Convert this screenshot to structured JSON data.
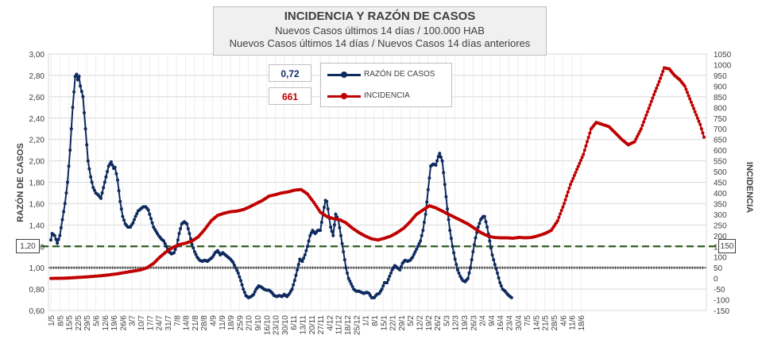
{
  "chart_data": {
    "type": "line",
    "title": "INCIDENCIA Y RAZÓN DE CASOS",
    "subtitle_1": "Nuevos Casos últimos 14 días / 100.000  HAB",
    "subtitle_2": "Nuevos Casos últimos 14 días / Nuevos Casos 14 días anteriores",
    "ylabel_left": "RAZÓN DE CASOS",
    "ylabel_right": "INCIDENCIA",
    "ylim_left": [
      0.6,
      3.0
    ],
    "ylim_right": [
      -150,
      1050
    ],
    "yticks_left": [
      "3,00",
      "2,80",
      "2,60",
      "2,40",
      "2,20",
      "2,00",
      "1,80",
      "1,60",
      "1,40",
      "1,20",
      "1,00",
      "0,80",
      "0,60"
    ],
    "yticks_right": [
      "1050",
      "1000",
      "950",
      "900",
      "850",
      "800",
      "750",
      "700",
      "650",
      "600",
      "550",
      "500",
      "450",
      "400",
      "350",
      "300",
      "250",
      "200",
      "150",
      "100",
      "50",
      "0",
      "-50",
      "-100",
      "-150"
    ],
    "x_tick_labels": [
      "1/5",
      "8/5",
      "15/5",
      "22/5",
      "29/5",
      "5/6",
      "12/6",
      "19/6",
      "26/6",
      "3/7",
      "10/7",
      "17/7",
      "24/7",
      "31/7",
      "7/8",
      "14/8",
      "21/8",
      "28/8",
      "4/9",
      "11/9",
      "18/9",
      "25/9",
      "2/10",
      "9/10",
      "16/10",
      "23/10",
      "30/10",
      "6/11",
      "13/11",
      "20/11",
      "27/11",
      "4/12",
      "11/12",
      "18/12",
      "25/12",
      "1/1",
      "8/1",
      "15/1",
      "22/1",
      "29/1",
      "5/2",
      "12/2",
      "19/2",
      "26/2",
      "5/3",
      "12/3",
      "19/3",
      "26/3",
      "2/4",
      "9/4",
      "16/4",
      "23/4",
      "30/4",
      "7/5",
      "14/5",
      "21/5",
      "28/5",
      "4/6",
      "11/6",
      "18/6"
    ],
    "threshold_ratio": 1.2,
    "threshold_ratio_label": "1,20",
    "threshold_incidence": 150,
    "threshold_incidence_label": "150",
    "baseline_ratio": 1.0,
    "series": [
      {
        "name": "RAZÓN DE CASOS",
        "color": "#0e2a5e",
        "axis": "left",
        "keypoints": [
          [
            0,
            1.26
          ],
          [
            1,
            1.32
          ],
          [
            3,
            1.3
          ],
          [
            5,
            1.23
          ],
          [
            7,
            1.3
          ],
          [
            9,
            1.45
          ],
          [
            11,
            1.6
          ],
          [
            13,
            1.8
          ],
          [
            15,
            2.1
          ],
          [
            17,
            2.5
          ],
          [
            19,
            2.79
          ],
          [
            20,
            2.81
          ],
          [
            21,
            2.76
          ],
          [
            22,
            2.79
          ],
          [
            23,
            2.7
          ],
          [
            25,
            2.6
          ],
          [
            27,
            2.3
          ],
          [
            29,
            2.0
          ],
          [
            31,
            1.85
          ],
          [
            33,
            1.75
          ],
          [
            35,
            1.7
          ],
          [
            37,
            1.68
          ],
          [
            39,
            1.65
          ],
          [
            41,
            1.75
          ],
          [
            43,
            1.85
          ],
          [
            45,
            1.95
          ],
          [
            47,
            1.99
          ],
          [
            49,
            1.93
          ],
          [
            50,
            1.94
          ],
          [
            52,
            1.82
          ],
          [
            54,
            1.62
          ],
          [
            56,
            1.48
          ],
          [
            58,
            1.41
          ],
          [
            60,
            1.38
          ],
          [
            62,
            1.38
          ],
          [
            64,
            1.42
          ],
          [
            66,
            1.48
          ],
          [
            68,
            1.53
          ],
          [
            70,
            1.55
          ],
          [
            72,
            1.57
          ],
          [
            74,
            1.57
          ],
          [
            76,
            1.54
          ],
          [
            78,
            1.46
          ],
          [
            80,
            1.38
          ],
          [
            82,
            1.34
          ],
          [
            84,
            1.3
          ],
          [
            86,
            1.27
          ],
          [
            88,
            1.25
          ],
          [
            90,
            1.2
          ],
          [
            92,
            1.15
          ],
          [
            94,
            1.13
          ],
          [
            96,
            1.14
          ],
          [
            98,
            1.2
          ],
          [
            100,
            1.32
          ],
          [
            102,
            1.41
          ],
          [
            104,
            1.43
          ],
          [
            106,
            1.41
          ],
          [
            108,
            1.32
          ],
          [
            110,
            1.22
          ],
          [
            112,
            1.15
          ],
          [
            114,
            1.1
          ],
          [
            116,
            1.07
          ],
          [
            118,
            1.06
          ],
          [
            120,
            1.07
          ],
          [
            122,
            1.06
          ],
          [
            124,
            1.08
          ],
          [
            126,
            1.1
          ],
          [
            128,
            1.14
          ],
          [
            130,
            1.16
          ],
          [
            132,
            1.12
          ],
          [
            134,
            1.14
          ],
          [
            136,
            1.12
          ],
          [
            138,
            1.1
          ],
          [
            140,
            1.08
          ],
          [
            142,
            1.05
          ],
          [
            144,
            1.0
          ],
          [
            146,
            0.95
          ],
          [
            148,
            0.88
          ],
          [
            150,
            0.8
          ],
          [
            152,
            0.74
          ],
          [
            154,
            0.72
          ],
          [
            156,
            0.73
          ],
          [
            158,
            0.75
          ],
          [
            160,
            0.8
          ],
          [
            162,
            0.83
          ],
          [
            164,
            0.82
          ],
          [
            166,
            0.8
          ],
          [
            168,
            0.79
          ],
          [
            170,
            0.79
          ],
          [
            172,
            0.77
          ],
          [
            174,
            0.74
          ],
          [
            176,
            0.73
          ],
          [
            178,
            0.74
          ],
          [
            180,
            0.73
          ],
          [
            182,
            0.75
          ],
          [
            184,
            0.73
          ],
          [
            186,
            0.76
          ],
          [
            188,
            0.8
          ],
          [
            190,
            0.88
          ],
          [
            192,
            0.98
          ],
          [
            194,
            1.08
          ],
          [
            196,
            1.06
          ],
          [
            198,
            1.12
          ],
          [
            200,
            1.2
          ],
          [
            202,
            1.3
          ],
          [
            204,
            1.35
          ],
          [
            206,
            1.32
          ],
          [
            208,
            1.35
          ],
          [
            210,
            1.35
          ],
          [
            212,
            1.5
          ],
          [
            214,
            1.63
          ],
          [
            215,
            1.62
          ],
          [
            216,
            1.55
          ],
          [
            218,
            1.38
          ],
          [
            220,
            1.3
          ],
          [
            222,
            1.5
          ],
          [
            224,
            1.45
          ],
          [
            226,
            1.3
          ],
          [
            228,
            1.15
          ],
          [
            230,
            1.0
          ],
          [
            232,
            0.9
          ],
          [
            234,
            0.85
          ],
          [
            236,
            0.8
          ],
          [
            238,
            0.78
          ],
          [
            240,
            0.78
          ],
          [
            242,
            0.77
          ],
          [
            244,
            0.76
          ],
          [
            246,
            0.77
          ],
          [
            248,
            0.76
          ],
          [
            250,
            0.72
          ],
          [
            252,
            0.72
          ],
          [
            254,
            0.75
          ],
          [
            256,
            0.76
          ],
          [
            258,
            0.8
          ],
          [
            260,
            0.86
          ],
          [
            262,
            0.86
          ],
          [
            264,
            0.92
          ],
          [
            266,
            0.98
          ],
          [
            268,
            1.02
          ],
          [
            270,
            1.0
          ],
          [
            272,
            0.98
          ],
          [
            274,
            1.04
          ],
          [
            276,
            1.07
          ],
          [
            278,
            1.06
          ],
          [
            280,
            1.07
          ],
          [
            282,
            1.1
          ],
          [
            284,
            1.15
          ],
          [
            286,
            1.2
          ],
          [
            288,
            1.25
          ],
          [
            290,
            1.35
          ],
          [
            292,
            1.5
          ],
          [
            294,
            1.73
          ],
          [
            296,
            1.95
          ],
          [
            298,
            1.97
          ],
          [
            300,
            1.96
          ],
          [
            302,
            2.04
          ],
          [
            303,
            2.07
          ],
          [
            305,
            2.0
          ],
          [
            307,
            1.78
          ],
          [
            309,
            1.55
          ],
          [
            311,
            1.35
          ],
          [
            313,
            1.2
          ],
          [
            315,
            1.08
          ],
          [
            317,
            0.98
          ],
          [
            319,
            0.92
          ],
          [
            321,
            0.88
          ],
          [
            323,
            0.87
          ],
          [
            325,
            0.9
          ],
          [
            327,
            1.0
          ],
          [
            329,
            1.15
          ],
          [
            331,
            1.28
          ],
          [
            333,
            1.38
          ],
          [
            335,
            1.45
          ],
          [
            337,
            1.48
          ],
          [
            338,
            1.48
          ],
          [
            340,
            1.38
          ],
          [
            342,
            1.25
          ],
          [
            344,
            1.12
          ],
          [
            346,
            1.03
          ],
          [
            348,
            0.95
          ],
          [
            350,
            0.86
          ],
          [
            352,
            0.8
          ],
          [
            354,
            0.78
          ],
          [
            356,
            0.75
          ],
          [
            358,
            0.73
          ],
          [
            359,
            0.72
          ]
        ]
      },
      {
        "name": "INCIDENCIA",
        "color": "#c00000",
        "axis": "right",
        "keypoints": [
          [
            0,
            0
          ],
          [
            10,
            1
          ],
          [
            20,
            4
          ],
          [
            30,
            8
          ],
          [
            40,
            13
          ],
          [
            50,
            20
          ],
          [
            60,
            30
          ],
          [
            70,
            40
          ],
          [
            75,
            50
          ],
          [
            80,
            70
          ],
          [
            85,
            100
          ],
          [
            90,
            125
          ],
          [
            95,
            145
          ],
          [
            100,
            158
          ],
          [
            105,
            165
          ],
          [
            110,
            175
          ],
          [
            115,
            195
          ],
          [
            120,
            230
          ],
          [
            125,
            270
          ],
          [
            130,
            295
          ],
          [
            135,
            305
          ],
          [
            140,
            312
          ],
          [
            145,
            315
          ],
          [
            150,
            322
          ],
          [
            155,
            335
          ],
          [
            160,
            350
          ],
          [
            165,
            365
          ],
          [
            170,
            385
          ],
          [
            175,
            392
          ],
          [
            180,
            400
          ],
          [
            185,
            405
          ],
          [
            190,
            413
          ],
          [
            195,
            416
          ],
          [
            200,
            395
          ],
          [
            205,
            355
          ],
          [
            210,
            310
          ],
          [
            215,
            290
          ],
          [
            220,
            280
          ],
          [
            225,
            275
          ],
          [
            230,
            260
          ],
          [
            235,
            235
          ],
          [
            240,
            215
          ],
          [
            245,
            198
          ],
          [
            250,
            185
          ],
          [
            255,
            180
          ],
          [
            260,
            188
          ],
          [
            265,
            198
          ],
          [
            270,
            215
          ],
          [
            275,
            235
          ],
          [
            280,
            265
          ],
          [
            285,
            300
          ],
          [
            290,
            320
          ],
          [
            295,
            340
          ],
          [
            300,
            330
          ],
          [
            305,
            315
          ],
          [
            310,
            300
          ],
          [
            315,
            285
          ],
          [
            320,
            270
          ],
          [
            325,
            255
          ],
          [
            330,
            235
          ],
          [
            335,
            215
          ],
          [
            340,
            200
          ],
          [
            345,
            192
          ],
          [
            350,
            190
          ],
          [
            355,
            190
          ],
          [
            360,
            188
          ],
          [
            365,
            192
          ],
          [
            370,
            190
          ],
          [
            375,
            192
          ],
          [
            380,
            200
          ],
          [
            385,
            210
          ],
          [
            390,
            225
          ],
          [
            395,
            270
          ],
          [
            400,
            350
          ],
          [
            405,
            440
          ],
          [
            410,
            510
          ],
          [
            415,
            580
          ],
          [
            418,
            640
          ],
          [
            421,
            700
          ],
          [
            425,
            730
          ],
          [
            430,
            720
          ],
          [
            435,
            710
          ],
          [
            440,
            680
          ],
          [
            445,
            650
          ],
          [
            450,
            625
          ],
          [
            455,
            640
          ],
          [
            460,
            700
          ],
          [
            465,
            780
          ],
          [
            470,
            860
          ],
          [
            474,
            920
          ],
          [
            478,
            985
          ],
          [
            482,
            980
          ],
          [
            486,
            950
          ],
          [
            490,
            930
          ],
          [
            494,
            900
          ],
          [
            498,
            840
          ],
          [
            502,
            780
          ],
          [
            506,
            720
          ],
          [
            509,
            661
          ]
        ]
      }
    ],
    "current_ratio_label": "0,72",
    "current_incidence_label": "661"
  }
}
